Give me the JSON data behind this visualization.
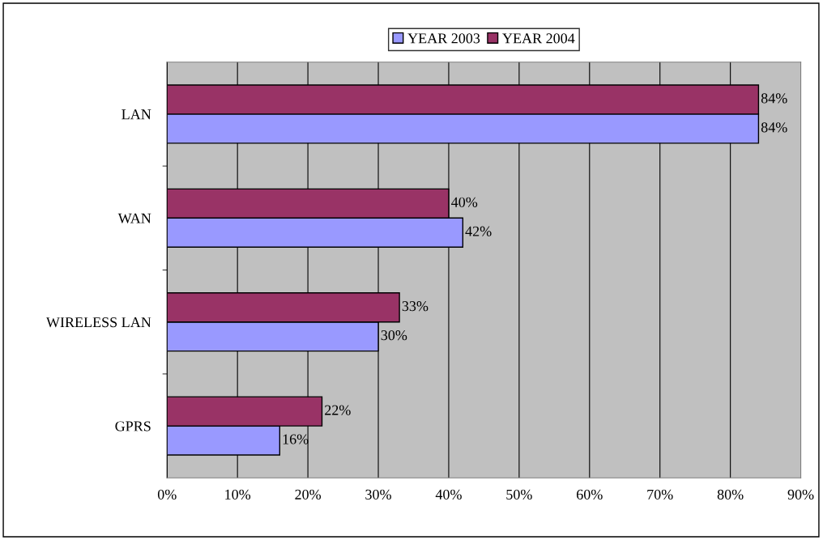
{
  "chart_data": {
    "type": "bar",
    "orientation": "horizontal",
    "categories": [
      "LAN",
      "WAN",
      "WIRELESS LAN",
      "GPRS"
    ],
    "series": [
      {
        "name": "YEAR 2003",
        "color": "#9999ff",
        "values": [
          84,
          42,
          30,
          16
        ],
        "value_labels": [
          "84%",
          "42%",
          "30%",
          "16%"
        ]
      },
      {
        "name": "YEAR 2004",
        "color": "#993366",
        "values": [
          84,
          40,
          33,
          22
        ],
        "value_labels": [
          "84%",
          "40%",
          "33%",
          "22%"
        ]
      }
    ],
    "xlim": [
      0,
      90
    ],
    "xticks": [
      {
        "value": 0,
        "label": "0%"
      },
      {
        "value": 10,
        "label": "10%"
      },
      {
        "value": 20,
        "label": "20%"
      },
      {
        "value": 30,
        "label": "30%"
      },
      {
        "value": 40,
        "label": "40%"
      },
      {
        "value": 50,
        "label": "50%"
      },
      {
        "value": 60,
        "label": "60%"
      },
      {
        "value": 70,
        "label": "70%"
      },
      {
        "value": 80,
        "label": "80%"
      },
      {
        "value": 90,
        "label": "90%"
      }
    ],
    "grid": "x",
    "legend": "top"
  }
}
